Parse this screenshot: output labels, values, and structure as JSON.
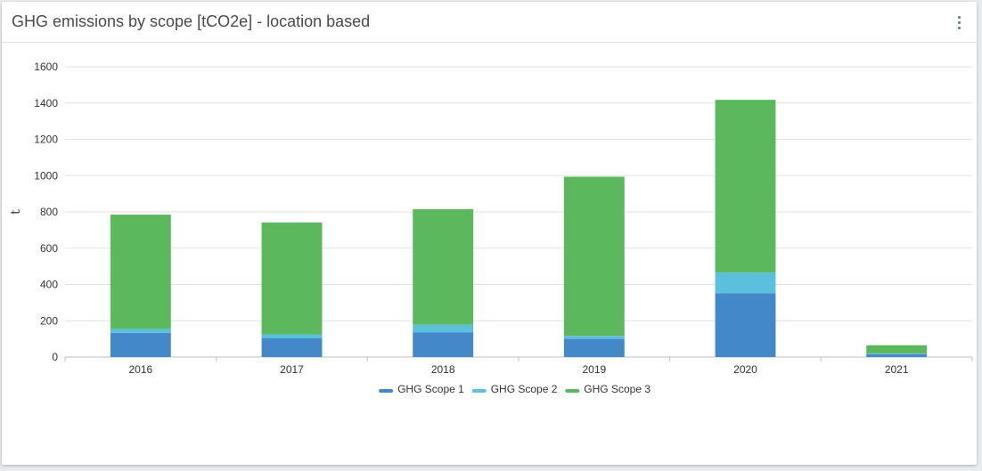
{
  "widget": {
    "title": "GHG emissions by scope [tCO2e] - location based",
    "menu_icon": "vertical-dots-icon"
  },
  "chart_data": {
    "type": "bar",
    "stacked": true,
    "title": "GHG emissions by scope [tCO2e] - location based",
    "xlabel": "",
    "ylabel": "t",
    "ylim": [
      0,
      1600
    ],
    "yticks": [
      0,
      200,
      400,
      600,
      800,
      1000,
      1200,
      1400,
      1600
    ],
    "grid": true,
    "legend_position": "bottom-center",
    "categories": [
      "2016",
      "2017",
      "2018",
      "2019",
      "2020",
      "2021"
    ],
    "series": [
      {
        "name": "GHG Scope 1",
        "color": "#4389c9",
        "values": [
          133,
          103,
          135,
          100,
          352,
          15
        ]
      },
      {
        "name": "GHG Scope 2",
        "color": "#5bc0de",
        "values": [
          22,
          22,
          43,
          17,
          113,
          5
        ]
      },
      {
        "name": "GHG Scope 3",
        "color": "#5cb85c",
        "values": [
          630,
          617,
          637,
          877,
          953,
          45
        ]
      }
    ]
  }
}
